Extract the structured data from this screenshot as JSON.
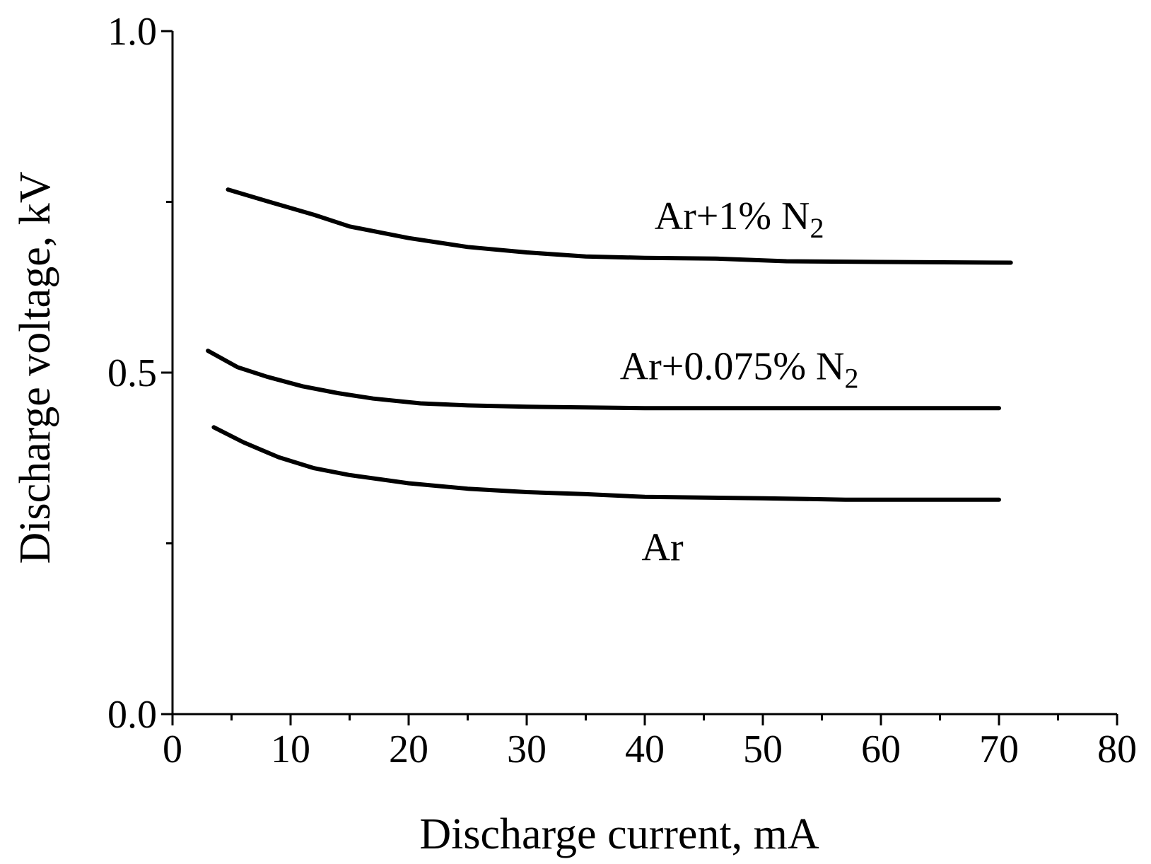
{
  "chart_data": {
    "type": "line",
    "title": "",
    "xlabel": "Discharge current, mA",
    "ylabel": "Discharge voltage, kV",
    "xlim": [
      0,
      80
    ],
    "ylim": [
      0.0,
      1.0
    ],
    "x_ticks": [
      0,
      10,
      20,
      30,
      40,
      50,
      60,
      70,
      80
    ],
    "x_tick_labels": [
      "0",
      "10",
      "20",
      "30",
      "40",
      "50",
      "60",
      "70",
      "80"
    ],
    "y_ticks": [
      0.0,
      0.5,
      1.0
    ],
    "y_tick_labels": [
      "0.0",
      "0.5",
      "1.0"
    ],
    "grid": false,
    "legend": "none",
    "series": [
      {
        "label": {
          "main": "Ar+1% N",
          "sub": "2",
          "at": [
            48,
            0.71
          ]
        },
        "color": "#000000",
        "points": [
          [
            4.7,
            0.768
          ],
          [
            8,
            0.751
          ],
          [
            12,
            0.731
          ],
          [
            15,
            0.714
          ],
          [
            20,
            0.697
          ],
          [
            25,
            0.684
          ],
          [
            30,
            0.676
          ],
          [
            35,
            0.67
          ],
          [
            40,
            0.668
          ],
          [
            46,
            0.667
          ],
          [
            52,
            0.663
          ],
          [
            60,
            0.662
          ],
          [
            71,
            0.661
          ]
        ]
      },
      {
        "label": {
          "main": "Ar+0.075% N",
          "sub": "2",
          "at": [
            48,
            0.49
          ]
        },
        "color": "#000000",
        "points": [
          [
            3,
            0.532
          ],
          [
            5.5,
            0.508
          ],
          [
            8,
            0.494
          ],
          [
            11,
            0.48
          ],
          [
            14,
            0.47
          ],
          [
            17,
            0.462
          ],
          [
            21,
            0.455
          ],
          [
            25,
            0.452
          ],
          [
            30,
            0.45
          ],
          [
            35,
            0.449
          ],
          [
            40,
            0.448
          ],
          [
            50,
            0.448
          ],
          [
            60,
            0.448
          ],
          [
            70,
            0.448
          ]
        ]
      },
      {
        "label": {
          "main": "Ar",
          "sub": "",
          "at": [
            41.5,
            0.225
          ]
        },
        "color": "#000000",
        "points": [
          [
            3.5,
            0.42
          ],
          [
            6,
            0.398
          ],
          [
            9,
            0.376
          ],
          [
            12,
            0.36
          ],
          [
            15,
            0.35
          ],
          [
            20,
            0.338
          ],
          [
            25,
            0.33
          ],
          [
            30,
            0.325
          ],
          [
            35,
            0.322
          ],
          [
            40,
            0.318
          ],
          [
            50,
            0.316
          ],
          [
            57,
            0.314
          ],
          [
            70,
            0.314
          ]
        ]
      }
    ]
  }
}
